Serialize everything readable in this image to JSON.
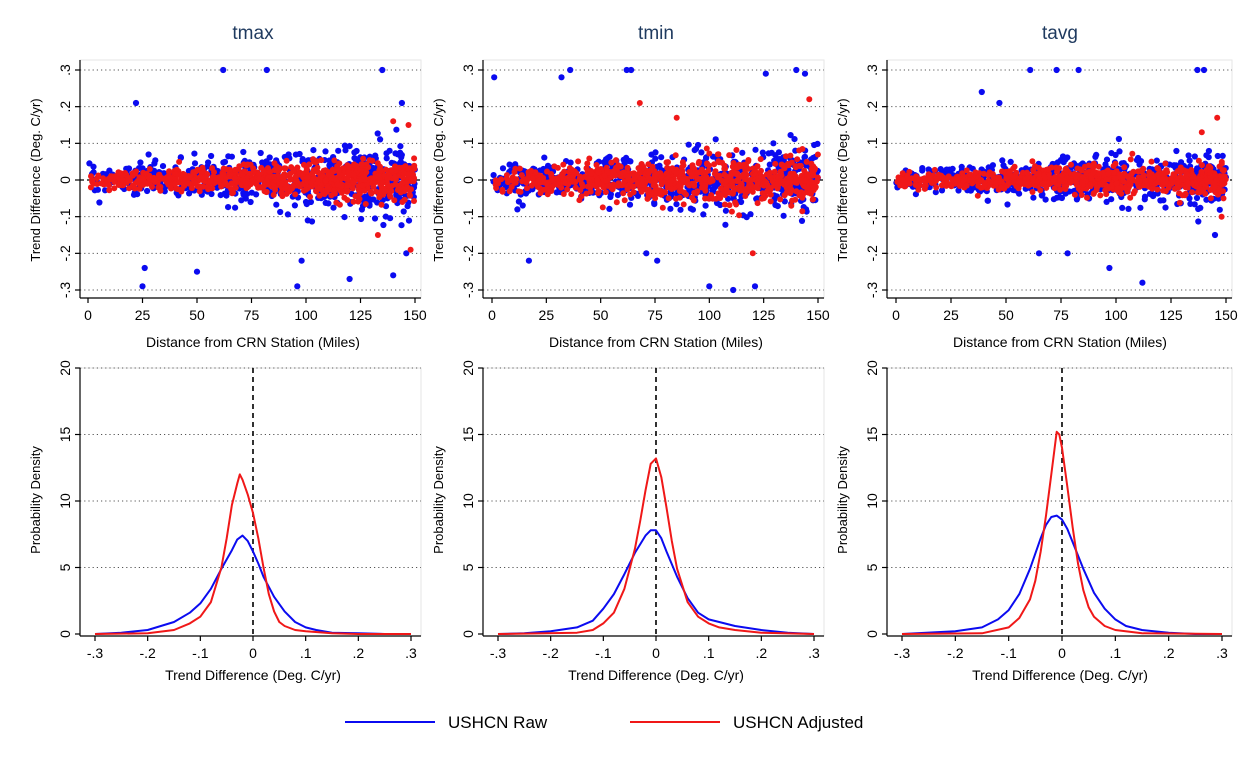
{
  "colors": {
    "raw": "#0b0bf0",
    "adjusted": "#f01818",
    "grid": "#555555",
    "axis": "#000000",
    "title": "#1f3a5f"
  },
  "legend": {
    "raw_label": "USHCN Raw",
    "adjusted_label": "USHCN Adjusted"
  },
  "chart_data": [
    {
      "type": "scatter",
      "title": "tmax",
      "xlabel": "Distance from CRN Station (Miles)",
      "ylabel": "Trend Difference (Deg. C/yr)",
      "xlim": [
        0,
        150
      ],
      "ylim": [
        -0.3,
        0.3
      ],
      "xticks": [
        0,
        25,
        50,
        75,
        100,
        125,
        150
      ],
      "xtick_labels": [
        "0",
        "25",
        "50",
        "75",
        "100",
        "125",
        "150"
      ],
      "yticks": [
        -0.3,
        -0.2,
        -0.1,
        0,
        0.1,
        0.2,
        0.3
      ],
      "ytick_labels": [
        "-.3",
        "-.2",
        "-.1",
        "0",
        ".1",
        ".2",
        ".3"
      ],
      "grid": "horizontal dotted",
      "reference_line": 0,
      "series": [
        {
          "name": "USHCN Raw",
          "spread_near": 0.03,
          "spread_far": 0.09,
          "outliers": [
            [
              22,
              0.21
            ],
            [
              26,
              -0.24
            ],
            [
              25,
              -0.29
            ],
            [
              50,
              -0.25
            ],
            [
              62,
              0.3
            ],
            [
              82,
              0.3
            ],
            [
              96,
              -0.29
            ],
            [
              98,
              -0.22
            ],
            [
              120,
              -0.27
            ],
            [
              135,
              0.3
            ],
            [
              140,
              -0.26
            ],
            [
              146,
              -0.2
            ],
            [
              144,
              0.21
            ]
          ]
        },
        {
          "name": "USHCN Adjusted",
          "spread_near": 0.02,
          "spread_far": 0.05,
          "outliers": [
            [
              140,
              0.16
            ],
            [
              147,
              0.15
            ],
            [
              148,
              -0.19
            ],
            [
              133,
              -0.15
            ]
          ]
        }
      ]
    },
    {
      "type": "scatter",
      "title": "tmin",
      "xlabel": "Distance from CRN Station (Miles)",
      "ylabel": "Trend Difference (Deg. C/yr)",
      "xlim": [
        0,
        150
      ],
      "ylim": [
        -0.3,
        0.3
      ],
      "xticks": [
        0,
        25,
        50,
        75,
        100,
        125,
        150
      ],
      "xtick_labels": [
        "0",
        "25",
        "50",
        "75",
        "100",
        "125",
        "150"
      ],
      "yticks": [
        -0.3,
        -0.2,
        -0.1,
        0,
        0.1,
        0.2,
        0.3
      ],
      "ytick_labels": [
        "-.3",
        "-.2",
        "-.1",
        "0",
        ".1",
        ".2",
        ".3"
      ],
      "grid": "horizontal dotted",
      "reference_line": 0,
      "series": [
        {
          "name": "USHCN Raw",
          "spread_near": 0.04,
          "spread_far": 0.09,
          "outliers": [
            [
              1,
              0.28
            ],
            [
              17,
              -0.22
            ],
            [
              32,
              0.28
            ],
            [
              36,
              0.3
            ],
            [
              62,
              0.3
            ],
            [
              64,
              0.3
            ],
            [
              71,
              -0.2
            ],
            [
              76,
              -0.22
            ],
            [
              100,
              -0.29
            ],
            [
              111,
              -0.3
            ],
            [
              121,
              -0.29
            ],
            [
              126,
              0.29
            ],
            [
              140,
              0.3
            ],
            [
              144,
              0.29
            ]
          ]
        },
        {
          "name": "USHCN Adjusted",
          "spread_near": 0.03,
          "spread_far": 0.06,
          "outliers": [
            [
              68,
              0.21
            ],
            [
              146,
              0.22
            ],
            [
              120,
              -0.2
            ],
            [
              85,
              0.17
            ]
          ]
        }
      ]
    },
    {
      "type": "scatter",
      "title": "tavg",
      "xlabel": "Distance from CRN Station (Miles)",
      "ylabel": "Trend Difference (Deg. C/yr)",
      "xlim": [
        0,
        150
      ],
      "ylim": [
        -0.3,
        0.3
      ],
      "xticks": [
        0,
        25,
        50,
        75,
        100,
        125,
        150
      ],
      "xtick_labels": [
        "0",
        "25",
        "50",
        "75",
        "100",
        "125",
        "150"
      ],
      "yticks": [
        -0.3,
        -0.2,
        -0.1,
        0,
        0.1,
        0.2,
        0.3
      ],
      "ytick_labels": [
        "-.3",
        "-.2",
        "-.1",
        "0",
        ".1",
        ".2",
        ".3"
      ],
      "grid": "horizontal dotted",
      "reference_line": 0,
      "series": [
        {
          "name": "USHCN Raw",
          "spread_near": 0.03,
          "spread_far": 0.07,
          "outliers": [
            [
              61,
              0.3
            ],
            [
              73,
              0.3
            ],
            [
              83,
              0.3
            ],
            [
              39,
              0.24
            ],
            [
              47,
              0.21
            ],
            [
              65,
              -0.2
            ],
            [
              78,
              -0.2
            ],
            [
              97,
              -0.24
            ],
            [
              112,
              -0.28
            ],
            [
              137,
              0.3
            ],
            [
              140,
              0.3
            ],
            [
              145,
              -0.15
            ]
          ]
        },
        {
          "name": "USHCN Adjusted",
          "spread_near": 0.02,
          "spread_far": 0.04,
          "outliers": [
            [
              146,
              0.17
            ],
            [
              139,
              0.13
            ],
            [
              148,
              -0.1
            ]
          ]
        }
      ]
    },
    {
      "type": "line",
      "title": "",
      "xlabel": "Trend Difference (Deg. C/yr)",
      "ylabel": "Probability Density",
      "xlim": [
        -0.32,
        0.32
      ],
      "ylim": [
        0,
        20
      ],
      "xticks": [
        -0.3,
        -0.2,
        -0.1,
        0,
        0.1,
        0.2,
        0.3
      ],
      "xtick_labels": [
        "-.3",
        "-.2",
        "-.1",
        "0",
        ".1",
        ".2",
        ".3"
      ],
      "yticks": [
        0,
        5,
        10,
        15,
        20
      ],
      "ytick_labels": [
        "0",
        "5",
        "10",
        "15",
        "20"
      ],
      "grid": "horizontal dotted",
      "reference_line": 0,
      "series": [
        {
          "name": "USHCN Raw",
          "x": [
            -0.3,
            -0.25,
            -0.2,
            -0.15,
            -0.12,
            -0.1,
            -0.08,
            -0.06,
            -0.04,
            -0.03,
            -0.02,
            -0.01,
            0,
            0.01,
            0.02,
            0.04,
            0.06,
            0.08,
            0.1,
            0.12,
            0.15,
            0.2,
            0.25,
            0.3
          ],
          "y": [
            0,
            0.1,
            0.3,
            0.9,
            1.6,
            2.3,
            3.4,
            4.9,
            6.3,
            7.1,
            7.4,
            7.0,
            6.2,
            5.3,
            4.3,
            2.8,
            1.7,
            0.9,
            0.5,
            0.3,
            0.1,
            0.05,
            0,
            0
          ]
        },
        {
          "name": "USHCN Adjusted",
          "x": [
            -0.3,
            -0.2,
            -0.15,
            -0.12,
            -0.1,
            -0.08,
            -0.06,
            -0.05,
            -0.04,
            -0.03,
            -0.025,
            -0.02,
            -0.01,
            0,
            0.01,
            0.02,
            0.03,
            0.04,
            0.05,
            0.06,
            0.08,
            0.1,
            0.15,
            0.2,
            0.3
          ],
          "y": [
            0,
            0.05,
            0.3,
            0.8,
            1.3,
            2.4,
            5.0,
            7.2,
            9.7,
            11.3,
            12.0,
            11.6,
            10.5,
            9.1,
            7.2,
            5.0,
            3.0,
            1.7,
            0.9,
            0.6,
            0.3,
            0.2,
            0.05,
            0,
            0
          ]
        }
      ]
    },
    {
      "type": "line",
      "title": "",
      "xlabel": "Trend Difference (Deg. C/yr)",
      "ylabel": "Probability Density",
      "xlim": [
        -0.32,
        0.32
      ],
      "ylim": [
        0,
        20
      ],
      "xticks": [
        -0.3,
        -0.2,
        -0.1,
        0,
        0.1,
        0.2,
        0.3
      ],
      "xtick_labels": [
        "-.3",
        "-.2",
        "-.1",
        "0",
        ".1",
        ".2",
        ".3"
      ],
      "yticks": [
        0,
        5,
        10,
        15,
        20
      ],
      "ytick_labels": [
        "0",
        "5",
        "10",
        "15",
        "20"
      ],
      "grid": "horizontal dotted",
      "reference_line": 0,
      "series": [
        {
          "name": "USHCN Raw",
          "x": [
            -0.3,
            -0.25,
            -0.2,
            -0.15,
            -0.12,
            -0.1,
            -0.08,
            -0.06,
            -0.04,
            -0.02,
            -0.01,
            0,
            0.01,
            0.02,
            0.04,
            0.06,
            0.08,
            0.1,
            0.12,
            0.15,
            0.2,
            0.25,
            0.3
          ],
          "y": [
            0,
            0.05,
            0.2,
            0.5,
            1.0,
            1.9,
            3.0,
            4.5,
            6.1,
            7.4,
            7.8,
            7.8,
            7.2,
            6.2,
            4.3,
            2.7,
            1.6,
            1.1,
            0.9,
            0.6,
            0.3,
            0.1,
            0
          ]
        },
        {
          "name": "USHCN Adjusted",
          "x": [
            -0.3,
            -0.15,
            -0.12,
            -0.1,
            -0.08,
            -0.06,
            -0.04,
            -0.03,
            -0.02,
            -0.01,
            0,
            0.01,
            0.02,
            0.03,
            0.04,
            0.06,
            0.08,
            0.1,
            0.12,
            0.15,
            0.2,
            0.3
          ],
          "y": [
            0,
            0.1,
            0.3,
            0.8,
            1.6,
            3.4,
            6.4,
            8.5,
            10.8,
            12.8,
            13.2,
            11.8,
            9.5,
            7.0,
            4.9,
            2.4,
            1.3,
            0.8,
            0.5,
            0.3,
            0.1,
            0
          ]
        }
      ]
    },
    {
      "type": "line",
      "title": "",
      "xlabel": "Trend Difference (Deg. C/yr)",
      "ylabel": "Probability Density",
      "xlim": [
        -0.32,
        0.32
      ],
      "ylim": [
        0,
        20
      ],
      "xticks": [
        -0.3,
        -0.2,
        -0.1,
        0,
        0.1,
        0.2,
        0.3
      ],
      "xtick_labels": [
        "-.3",
        "-.2",
        "-.1",
        "0",
        ".1",
        ".2",
        ".3"
      ],
      "yticks": [
        0,
        5,
        10,
        15,
        20
      ],
      "ytick_labels": [
        "0",
        "5",
        "10",
        "15",
        "20"
      ],
      "grid": "horizontal dotted",
      "reference_line": 0,
      "series": [
        {
          "name": "USHCN Raw",
          "x": [
            -0.3,
            -0.2,
            -0.15,
            -0.12,
            -0.1,
            -0.08,
            -0.06,
            -0.04,
            -0.03,
            -0.02,
            -0.01,
            0,
            0.01,
            0.02,
            0.04,
            0.06,
            0.08,
            0.1,
            0.12,
            0.15,
            0.2,
            0.25,
            0.3
          ],
          "y": [
            0,
            0.2,
            0.5,
            1.1,
            1.8,
            3.0,
            4.9,
            7.2,
            8.2,
            8.8,
            8.9,
            8.6,
            7.9,
            6.9,
            4.9,
            3.1,
            1.9,
            1.1,
            0.6,
            0.3,
            0.1,
            0,
            0
          ]
        },
        {
          "name": "USHCN Adjusted",
          "x": [
            -0.3,
            -0.15,
            -0.1,
            -0.08,
            -0.06,
            -0.05,
            -0.04,
            -0.03,
            -0.02,
            -0.015,
            -0.01,
            -0.005,
            0,
            0.01,
            0.02,
            0.03,
            0.04,
            0.05,
            0.06,
            0.08,
            0.1,
            0.15,
            0.3
          ],
          "y": [
            0,
            0.05,
            0.5,
            1.2,
            2.6,
            4.0,
            6.2,
            8.9,
            12.0,
            13.6,
            15.2,
            15.0,
            14.0,
            11.1,
            8.0,
            5.3,
            3.3,
            2.0,
            1.3,
            0.6,
            0.3,
            0.05,
            0
          ]
        }
      ]
    }
  ]
}
